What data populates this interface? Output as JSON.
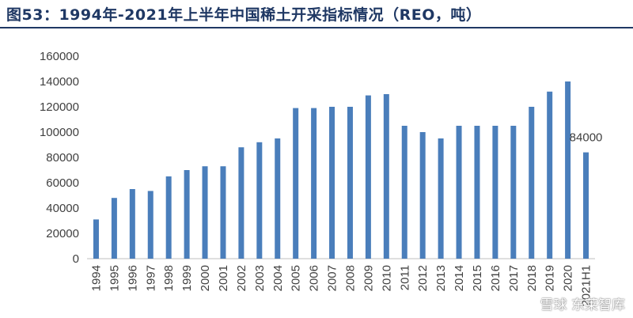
{
  "title": "图53：1994年-2021年上半年中国稀土开采指标情况（REO，吨）",
  "watermark": "雪球  东莱智库",
  "colors": {
    "bar": "#4a7ebb",
    "title": "#1f3864",
    "axis": "#bfbfbf"
  },
  "chart_data": {
    "type": "bar",
    "categories": [
      "1994",
      "1995",
      "1996",
      "1997",
      "1998",
      "1999",
      "2000",
      "2001",
      "2002",
      "2003",
      "2004",
      "2005",
      "2006",
      "2007",
      "2008",
      "2009",
      "2010",
      "2011",
      "2012",
      "2013",
      "2014",
      "2015",
      "2016",
      "2017",
      "2018",
      "2019",
      "2020",
      "2021H1"
    ],
    "values": [
      31000,
      48000,
      55000,
      53500,
      65000,
      70000,
      73000,
      73000,
      88000,
      92000,
      95000,
      119000,
      119000,
      120000,
      120000,
      129000,
      130000,
      105000,
      100000,
      95000,
      105000,
      105000,
      105000,
      105000,
      120000,
      132000,
      140000,
      84000
    ],
    "data_labels": [
      {
        "category": "2021H1",
        "text": "84000"
      }
    ],
    "yticks": [
      "0",
      "20000",
      "40000",
      "60000",
      "80000",
      "100000",
      "120000",
      "140000",
      "160000"
    ],
    "ylim": [
      0,
      160000
    ],
    "xlabel": "",
    "ylabel": "",
    "grid": false
  }
}
